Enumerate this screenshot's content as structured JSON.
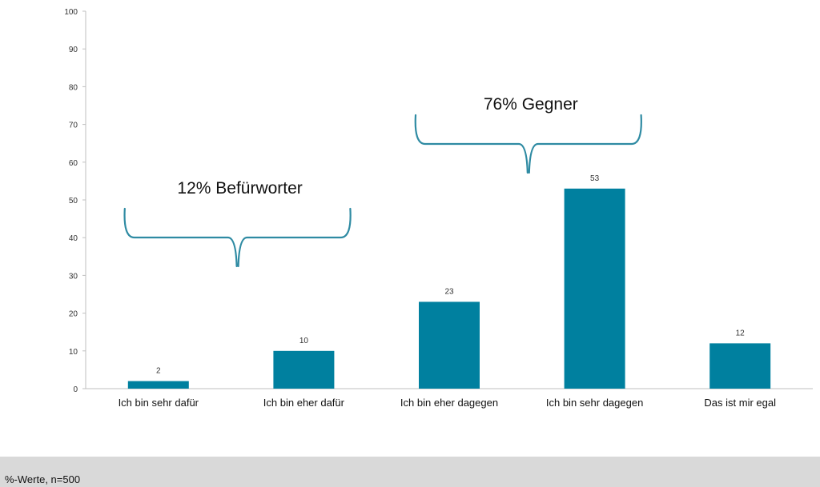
{
  "chart_data": {
    "type": "bar",
    "categories": [
      "Ich bin sehr dafür",
      "Ich bin eher dafür",
      "Ich bin eher dagegen",
      "Ich bin sehr dagegen",
      "Das ist mir egal"
    ],
    "values": [
      2,
      10,
      23,
      53,
      12
    ],
    "ylim": [
      0,
      100
    ],
    "yticks": [
      0,
      10,
      20,
      30,
      40,
      50,
      60,
      70,
      80,
      90,
      100
    ],
    "grid": false,
    "bar_color": "#00809f",
    "annotations": [
      {
        "text": "12% Befürworter",
        "spans": [
          0,
          1
        ]
      },
      {
        "text": "76% Gegner",
        "spans": [
          2,
          3
        ]
      }
    ]
  },
  "colors": {
    "brace": "#2f8ba3",
    "footer_bg": "#d9d9d9"
  },
  "footer": {
    "note": "%-Werte, n=500"
  }
}
